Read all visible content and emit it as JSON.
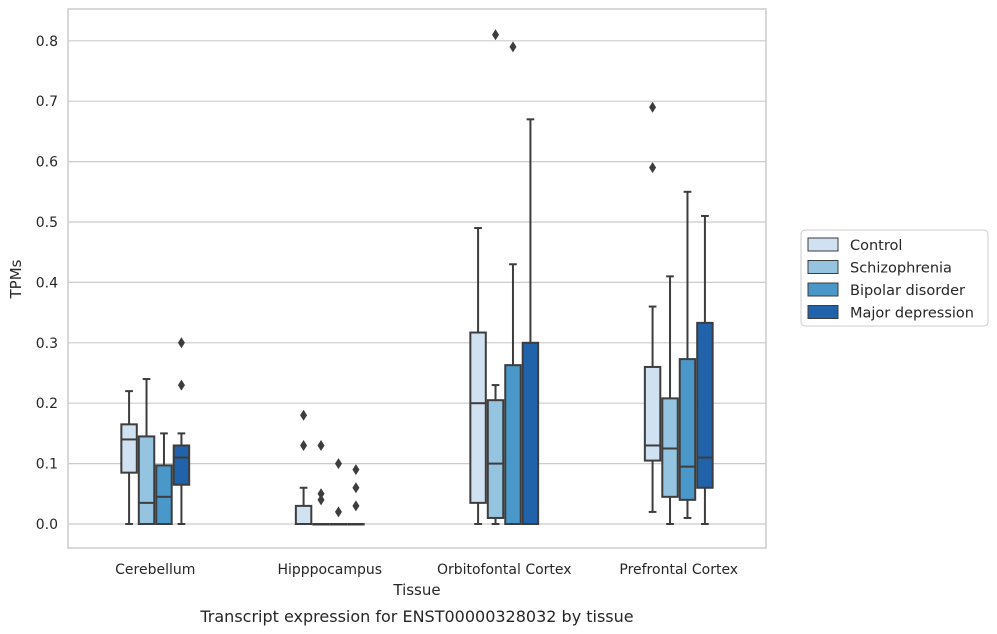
{
  "chart_data": {
    "type": "box",
    "xlabel": "Tissue",
    "ylabel": "TPMs",
    "caption": "Transcript expression for ENST00000328032 by tissue",
    "categories": [
      "Cerebellum",
      "Hipppocampus",
      "Orbitofontal Cortex",
      "Prefrontal Cortex"
    ],
    "ylim": [
      -0.04,
      0.85
    ],
    "yticks": [
      "0.0",
      "0.1",
      "0.2",
      "0.3",
      "0.4",
      "0.5",
      "0.6",
      "0.7",
      "0.8"
    ],
    "grid": true,
    "legend_position": "right",
    "series": [
      {
        "name": "Control",
        "color": "#d0e1f2",
        "boxes": [
          {
            "whislo": 0.0,
            "q1": 0.085,
            "med": 0.14,
            "q3": 0.165,
            "whishi": 0.22,
            "fliers": []
          },
          {
            "whislo": 0.0,
            "q1": 0.0,
            "med": 0.0,
            "q3": 0.03,
            "whishi": 0.06,
            "fliers": [
              0.13,
              0.18
            ]
          },
          {
            "whislo": 0.0,
            "q1": 0.035,
            "med": 0.2,
            "q3": 0.317,
            "whishi": 0.49,
            "fliers": []
          },
          {
            "whislo": 0.02,
            "q1": 0.105,
            "med": 0.13,
            "q3": 0.26,
            "whishi": 0.36,
            "fliers": [
              0.59,
              0.69
            ]
          }
        ]
      },
      {
        "name": "Schizophrenia",
        "color": "#94c4df",
        "boxes": [
          {
            "whislo": 0.0,
            "q1": 0.0,
            "med": 0.035,
            "q3": 0.145,
            "whishi": 0.24,
            "fliers": []
          },
          {
            "whislo": 0.0,
            "q1": 0.0,
            "med": 0.0,
            "q3": 0.0,
            "whishi": 0.0,
            "fliers": [
              0.04,
              0.05,
              0.13
            ]
          },
          {
            "whislo": 0.0,
            "q1": 0.01,
            "med": 0.1,
            "q3": 0.205,
            "whishi": 0.23,
            "fliers": [
              0.81
            ]
          },
          {
            "whislo": 0.0,
            "q1": 0.045,
            "med": 0.125,
            "q3": 0.208,
            "whishi": 0.41,
            "fliers": []
          }
        ]
      },
      {
        "name": "Bipolar disorder",
        "color": "#4a98c9",
        "boxes": [
          {
            "whislo": 0.0,
            "q1": 0.0,
            "med": 0.045,
            "q3": 0.097,
            "whishi": 0.15,
            "fliers": []
          },
          {
            "whislo": 0.0,
            "q1": 0.0,
            "med": 0.0,
            "q3": 0.0,
            "whishi": 0.0,
            "fliers": [
              0.02,
              0.1
            ]
          },
          {
            "whislo": 0.0,
            "q1": 0.0,
            "med": 0.0,
            "q3": 0.263,
            "whishi": 0.43,
            "fliers": [
              0.79
            ]
          },
          {
            "whislo": 0.01,
            "q1": 0.04,
            "med": 0.095,
            "q3": 0.273,
            "whishi": 0.55,
            "fliers": []
          }
        ]
      },
      {
        "name": "Major depression",
        "color": "#2163aa",
        "boxes": [
          {
            "whislo": 0.0,
            "q1": 0.065,
            "med": 0.11,
            "q3": 0.13,
            "whishi": 0.15,
            "fliers": [
              0.23,
              0.3
            ]
          },
          {
            "whislo": 0.0,
            "q1": 0.0,
            "med": 0.0,
            "q3": 0.0,
            "whishi": 0.0,
            "fliers": [
              0.03,
              0.06,
              0.09
            ]
          },
          {
            "whislo": 0.0,
            "q1": 0.0,
            "med": 0.0,
            "q3": 0.3,
            "whishi": 0.67,
            "fliers": []
          },
          {
            "whislo": 0.0,
            "q1": 0.06,
            "med": 0.11,
            "q3": 0.333,
            "whishi": 0.51,
            "fliers": []
          }
        ]
      }
    ]
  }
}
